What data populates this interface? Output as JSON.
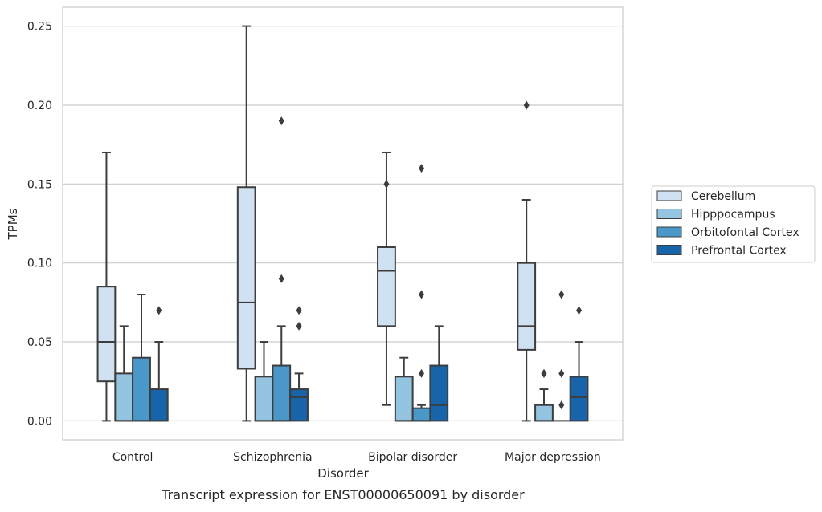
{
  "caption": "Transcript expression for ENST00000650091 by disorder",
  "chart_data": {
    "type": "box",
    "title": "",
    "xlabel": "Disorder",
    "ylabel": "TPMs",
    "ylim": [
      -0.012,
      0.262
    ],
    "yticks": [
      0.0,
      0.05,
      0.1,
      0.15,
      0.2,
      0.25
    ],
    "ytick_labels": [
      "0.00",
      "0.05",
      "0.10",
      "0.15",
      "0.20",
      "0.25"
    ],
    "categories": [
      "Control",
      "Schizophrenia",
      "Bipolar disorder",
      "Major depression"
    ],
    "grid": "horizontal",
    "legend_position": "right",
    "series": [
      {
        "name": "Cerebellum",
        "color": "#d0e1f2",
        "boxes": [
          {
            "min": 0.0,
            "q1": 0.025,
            "median": 0.05,
            "q3": 0.085,
            "max": 0.17,
            "outliers": []
          },
          {
            "min": 0.0,
            "q1": 0.033,
            "median": 0.075,
            "q3": 0.148,
            "max": 0.25,
            "outliers": []
          },
          {
            "min": 0.01,
            "q1": 0.06,
            "median": 0.095,
            "q3": 0.11,
            "max": 0.17,
            "outliers": [
              0.15
            ]
          },
          {
            "min": 0.0,
            "q1": 0.045,
            "median": 0.06,
            "q3": 0.1,
            "max": 0.14,
            "outliers": [
              0.2
            ]
          }
        ]
      },
      {
        "name": "Hipppocampus",
        "color": "#94c4df",
        "boxes": [
          {
            "min": 0.0,
            "q1": 0.0,
            "median": 0.0,
            "q3": 0.03,
            "max": 0.06,
            "outliers": []
          },
          {
            "min": 0.0,
            "q1": 0.0,
            "median": 0.0,
            "q3": 0.028,
            "max": 0.05,
            "outliers": []
          },
          {
            "min": 0.0,
            "q1": 0.0,
            "median": 0.0,
            "q3": 0.028,
            "max": 0.04,
            "outliers": []
          },
          {
            "min": 0.0,
            "q1": 0.0,
            "median": 0.0,
            "q3": 0.01,
            "max": 0.02,
            "outliers": [
              0.03,
              0.03
            ]
          }
        ]
      },
      {
        "name": "Orbitofontal Cortex",
        "color": "#4a98c9",
        "boxes": [
          {
            "min": 0.0,
            "q1": 0.0,
            "median": 0.0,
            "q3": 0.04,
            "max": 0.08,
            "outliers": []
          },
          {
            "min": 0.0,
            "q1": 0.0,
            "median": 0.0,
            "q3": 0.035,
            "max": 0.06,
            "outliers": [
              0.09,
              0.19
            ]
          },
          {
            "min": 0.0,
            "q1": 0.0,
            "median": 0.0,
            "q3": 0.008,
            "max": 0.01,
            "outliers": [
              0.03,
              0.08,
              0.16
            ]
          },
          {
            "min": 0.0,
            "q1": 0.0,
            "median": 0.0,
            "q3": 0.0,
            "max": 0.0,
            "outliers": [
              0.01,
              0.03,
              0.08
            ]
          }
        ]
      },
      {
        "name": "Prefrontal Cortex",
        "color": "#1764ab",
        "boxes": [
          {
            "min": 0.0,
            "q1": 0.0,
            "median": 0.0,
            "q3": 0.02,
            "max": 0.05,
            "outliers": [
              0.07
            ]
          },
          {
            "min": 0.0,
            "q1": 0.0,
            "median": 0.015,
            "q3": 0.02,
            "max": 0.03,
            "outliers": [
              0.06,
              0.07
            ]
          },
          {
            "min": 0.0,
            "q1": 0.0,
            "median": 0.01,
            "q3": 0.035,
            "max": 0.06,
            "outliers": []
          },
          {
            "min": 0.0,
            "q1": 0.0,
            "median": 0.015,
            "q3": 0.028,
            "max": 0.05,
            "outliers": [
              0.07
            ]
          }
        ]
      }
    ]
  }
}
